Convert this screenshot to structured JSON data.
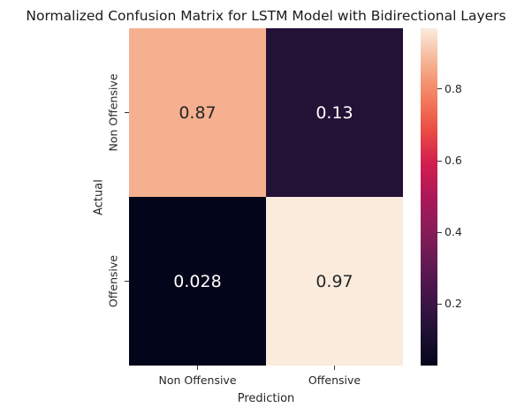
{
  "chart_data": {
    "type": "heatmap",
    "title": "Normalized Confusion Matrix for LSTM Model with Bidirectional Layers",
    "xlabel": "Prediction",
    "ylabel": "Actual",
    "x_categories": [
      "Non Offensive",
      "Offensive"
    ],
    "y_categories": [
      "Non Offensive",
      "Offensive"
    ],
    "values": [
      [
        0.87,
        0.13
      ],
      [
        0.028,
        0.97
      ]
    ],
    "cell_labels": [
      [
        "0.87",
        "0.13"
      ],
      [
        "0.028",
        "0.97"
      ]
    ],
    "colorbar": {
      "vmin": 0.028,
      "vmax": 0.97,
      "ticks": [
        0.2,
        0.4,
        0.6,
        0.8
      ],
      "tick_labels": [
        "0.2",
        "0.4",
        "0.6",
        "0.8"
      ],
      "colormap": "rocket"
    }
  }
}
